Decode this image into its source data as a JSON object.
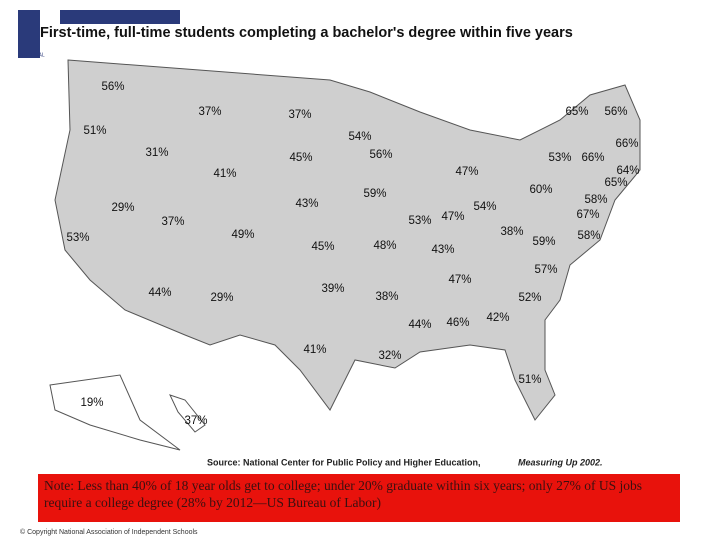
{
  "header": {
    "logo_text": "NATIONAL",
    "title": "First-time, full-time students completing a bachelor's degree within five years"
  },
  "map": {
    "states": [
      {
        "name": "WA",
        "label": "56%"
      },
      {
        "name": "OR",
        "label": "51%"
      },
      {
        "name": "CA",
        "label": "53%"
      },
      {
        "name": "NV",
        "label": "29%"
      },
      {
        "name": "ID",
        "label": "31%"
      },
      {
        "name": "MT",
        "label": "37%"
      },
      {
        "name": "WY",
        "label": "41%"
      },
      {
        "name": "UT",
        "label": "37%"
      },
      {
        "name": "CO",
        "label": "49%"
      },
      {
        "name": "AZ",
        "label": "44%"
      },
      {
        "name": "NM",
        "label": "29%"
      },
      {
        "name": "ND",
        "label": "37%"
      },
      {
        "name": "SD",
        "label": "45%"
      },
      {
        "name": "NE",
        "label": "43%"
      },
      {
        "name": "KS",
        "label": "45%"
      },
      {
        "name": "OK",
        "label": "39%"
      },
      {
        "name": "TX",
        "label": "41%"
      },
      {
        "name": "MN",
        "label": "54%"
      },
      {
        "name": "IA",
        "label": "59%"
      },
      {
        "name": "MO",
        "label": "48%"
      },
      {
        "name": "AR",
        "label": "38%"
      },
      {
        "name": "LA",
        "label": "32%"
      },
      {
        "name": "WI",
        "label": "56%"
      },
      {
        "name": "IL",
        "label": "53%"
      },
      {
        "name": "MI",
        "label": "47%"
      },
      {
        "name": "IN",
        "label": "47%"
      },
      {
        "name": "OH",
        "label": "54%"
      },
      {
        "name": "KY",
        "label": "43%"
      },
      {
        "name": "TN",
        "label": "47%"
      },
      {
        "name": "MS",
        "label": "44%"
      },
      {
        "name": "AL",
        "label": "46%"
      },
      {
        "name": "GA",
        "label": "42%"
      },
      {
        "name": "FL",
        "label": "51%"
      },
      {
        "name": "SC",
        "label": "52%"
      },
      {
        "name": "NC",
        "label": "57%"
      },
      {
        "name": "VA",
        "label": "59%"
      },
      {
        "name": "WV",
        "label": "38%"
      },
      {
        "name": "PA",
        "label": "60%"
      },
      {
        "name": "NY",
        "label": "53%"
      },
      {
        "name": "VT",
        "label": "65%"
      },
      {
        "name": "ME",
        "label": "56%"
      },
      {
        "name": "MA",
        "label": "66%"
      },
      {
        "name": "CT",
        "label": "66%"
      },
      {
        "name": "RI",
        "label": "64%"
      },
      {
        "name": "NH",
        "label": "65%"
      },
      {
        "name": "NJ",
        "label": "58%"
      },
      {
        "name": "DE",
        "label": "67%"
      },
      {
        "name": "MD",
        "label": "58%"
      },
      {
        "name": "AK",
        "label": "19%"
      },
      {
        "name": "HI",
        "label": "37%"
      }
    ],
    "source_prefix": "Source:  National Center for Public Policy and Higher Education,",
    "source_title": "Measuring Up 2002."
  },
  "note": "Note: Less than 40% of 18 year olds get to college; under 20% graduate within six years; only 27% of US jobs require a college degree (28% by 2012—US Bureau of Labor)",
  "footer": "© Copyright National Association of Independent Schools"
}
